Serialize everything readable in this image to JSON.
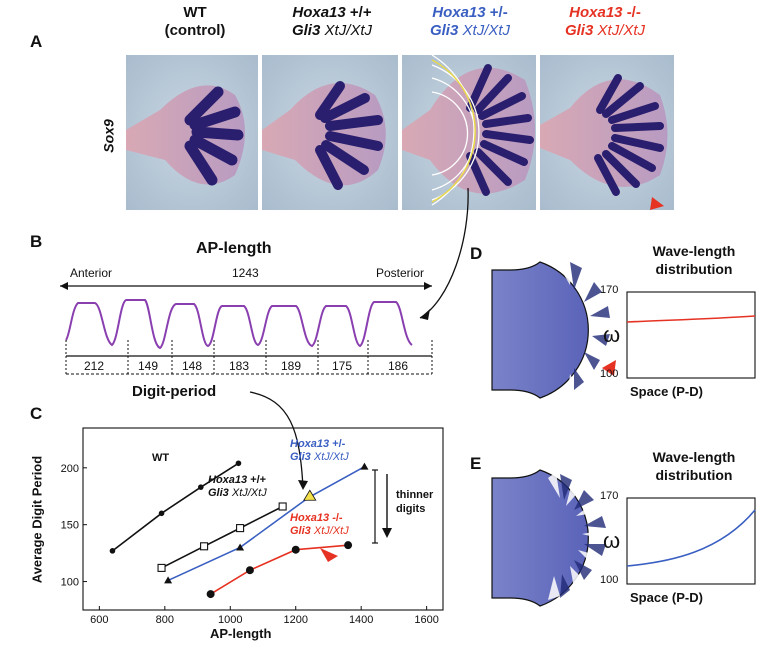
{
  "panels": {
    "a": "A",
    "b": "B",
    "c": "C",
    "d": "D",
    "e": "E"
  },
  "panelA": {
    "row_label": "Sox9",
    "headers": [
      {
        "line1": "WT",
        "line2": "(control)"
      },
      {
        "gene1": "Hoxa13",
        "geno1": "+/+",
        "gene2": "Gli3",
        "geno2": "Xt",
        "geno2b": "J",
        "geno2c": "/Xt",
        "geno2d": "J"
      },
      {
        "gene1": "Hoxa13",
        "geno1": "+/-",
        "gene2": "Gli3",
        "geno2": "Xt",
        "geno2b": "J",
        "geno2c": "/Xt",
        "geno2d": "J"
      },
      {
        "gene1": "Hoxa13",
        "geno1": "-/-",
        "gene2": "Gli3",
        "geno2": "Xt",
        "geno2b": "J",
        "geno2c": "/Xt",
        "geno2d": "J"
      }
    ]
  },
  "panelB": {
    "title": "AP-length",
    "anterior": "Anterior",
    "posterior": "Posterior",
    "total": "1243",
    "periods": [
      "212",
      "149",
      "148",
      "183",
      "189",
      "175",
      "186"
    ],
    "caption": "Digit-period"
  },
  "chart_data": {
    "type": "line",
    "xlabel": "AP-length",
    "ylabel": "Average Digit Period",
    "xlim": [
      550,
      1650
    ],
    "ylim": [
      75,
      235
    ],
    "xticks": [
      "600",
      "800",
      "1000",
      "1200",
      "1400",
      "1600"
    ],
    "yticks": [
      "100",
      "150",
      "200"
    ],
    "grid": false,
    "series": [
      {
        "name": "WT",
        "color": "#111111",
        "marker": "circle",
        "x": [
          640,
          790,
          910,
          1025
        ],
        "y": [
          127,
          160,
          183,
          204
        ]
      },
      {
        "name": "Hoxa13 +/+ Gli3 XtJ/XtJ",
        "color": "#111111",
        "marker": "square",
        "x": [
          790,
          920,
          1030,
          1160
        ],
        "y": [
          112,
          131,
          147,
          166
        ]
      },
      {
        "name": "Hoxa13 +/- Gli3 XtJ/XtJ",
        "color": "#3a5fc2",
        "marker": "triangle",
        "x": [
          810,
          1030,
          1240,
          1410
        ],
        "y": [
          101,
          130,
          174,
          201
        ]
      },
      {
        "name": "Hoxa13 -/- Gli3 XtJ/XtJ",
        "color": "#e63222",
        "marker": "dot",
        "x": [
          940,
          1060,
          1200,
          1360
        ],
        "y": [
          89,
          110,
          128,
          132
        ]
      }
    ],
    "highlight_point": {
      "x": 1243,
      "y": 175,
      "color": "#f3e04a"
    },
    "labels": {
      "wt": "WT",
      "ctrl_gene1": "Hoxa13",
      "ctrl_geno1": "+/+",
      "ctrl_gene2": "Gli3",
      "ctrl_geno2": "XtJ/XtJ",
      "het_gene1": "Hoxa13",
      "het_geno1": "+/-",
      "het_gene2": "Gli3",
      "het_geno2": "XtJ/XtJ",
      "ko_gene1": "Hoxa13",
      "ko_geno1": "-/-",
      "ko_gene2": "Gli3",
      "ko_geno2": "XtJ/XtJ",
      "annotation1": "thinner",
      "annotation2": "digits"
    }
  },
  "panelD": {
    "title1": "Wave-length",
    "title2": "distribution",
    "xlabel": "Space (P-D)",
    "ylabel": "ω",
    "ytick_top": "170",
    "ytick_bottom": "100",
    "line_color": "#e63222"
  },
  "panelE": {
    "title1": "Wave-length",
    "title2": "distribution",
    "xlabel": "Space (P-D)",
    "ylabel": "ω",
    "ytick_top": "170",
    "ytick_bottom": "100",
    "line_color": "#3a5fc2"
  },
  "colors": {
    "blue": "#3a5fc2",
    "red": "#e63222",
    "purple": "#8a3fb0"
  }
}
